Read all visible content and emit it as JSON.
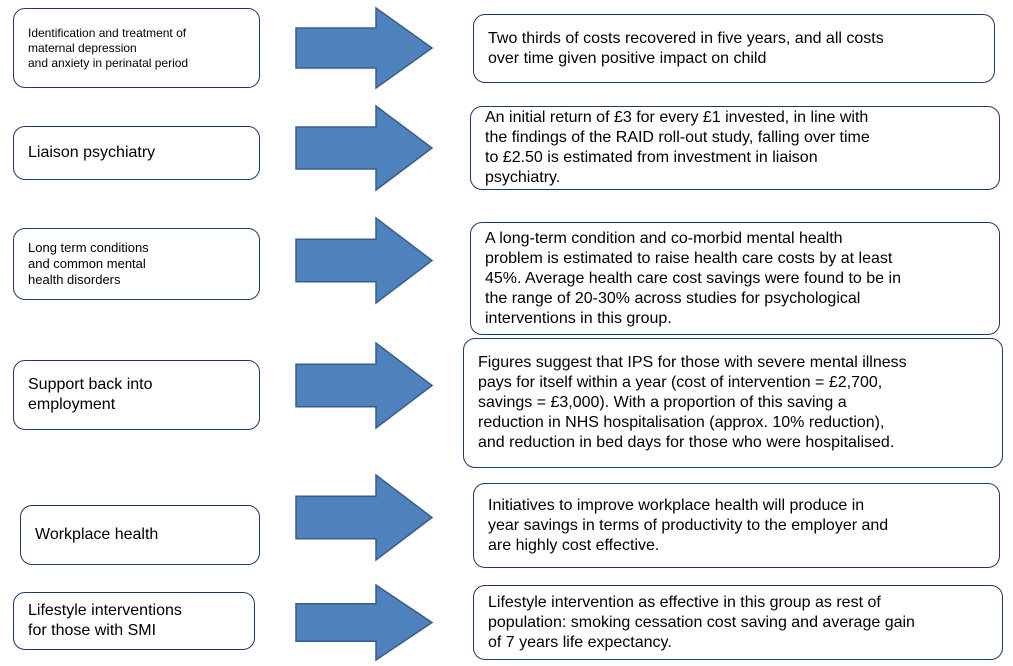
{
  "rows": [
    {
      "left": [
        "Identification and treatment of",
        "maternal depression",
        "and anxiety in perinatal period"
      ],
      "right": [
        "Two thirds of costs recovered in five years, and all costs",
        "over time given positive impact on child"
      ]
    },
    {
      "left": [
        "Liaison psychiatry"
      ],
      "right": [
        "An initial return of £3 for every £1 invested, in line with",
        "the findings of the RAID roll-out study, falling over time",
        "to £2.50 is estimated from investment in liaison",
        "psychiatry."
      ]
    },
    {
      "left": [
        "Long term conditions",
        "and common mental",
        "health disorders"
      ],
      "right": [
        "A long-term condition and co-morbid mental health",
        "problem is estimated to raise health care costs by at least",
        "45%. Average health care cost savings were found to be in",
        "the range of 20-30% across studies for psychological",
        "interventions in this group."
      ]
    },
    {
      "left": [
        "Support back into",
        "employment"
      ],
      "right": [
        "Figures suggest that IPS for those with severe mental illness",
        "pays for itself within a year (cost of intervention = £2,700,",
        "savings = £3,000). With a proportion of this saving a",
        "reduction in NHS hospitalisation (approx. 10% reduction),",
        "and reduction in bed days for those who were hospitalised."
      ]
    },
    {
      "left": [
        "Workplace health"
      ],
      "right": [
        "Initiatives to improve workplace health will produce in",
        "year savings in terms of productivity to the employer and",
        "are highly cost effective."
      ]
    },
    {
      "left": [
        "Lifestyle interventions",
        "for those with SMI"
      ],
      "right": [
        "Lifestyle intervention as effective in this group as rest of",
        "population: smoking cessation cost saving and average gain",
        "of 7 years life expectancy."
      ]
    }
  ]
}
